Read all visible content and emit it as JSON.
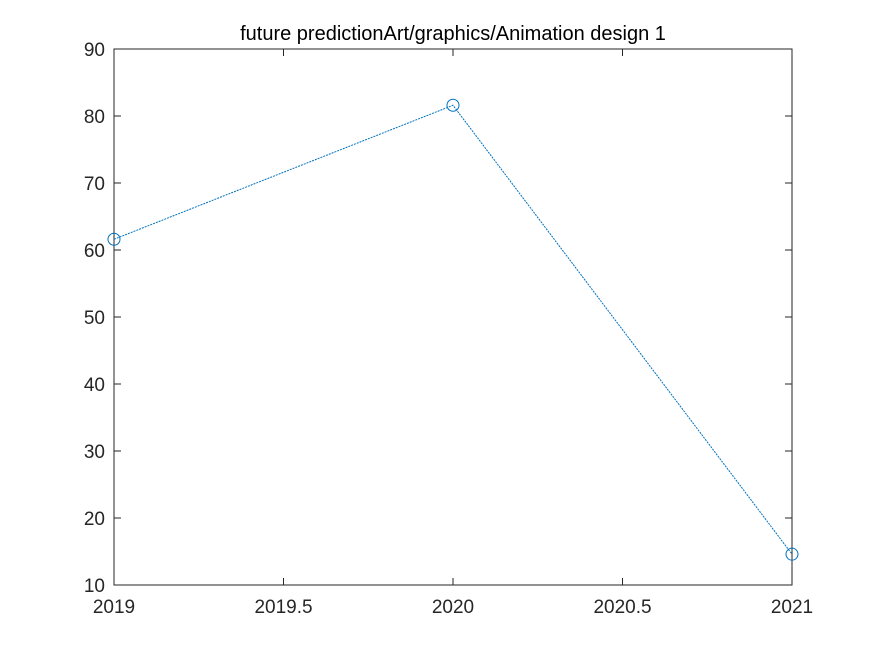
{
  "chart_data": {
    "type": "line",
    "title": "future predictionArt/graphics/Animation design 1",
    "xlabel": "",
    "ylabel": "",
    "xlim": [
      2019,
      2021
    ],
    "ylim": [
      10,
      90
    ],
    "x_ticks": [
      2019,
      2019.5,
      2020,
      2020.5,
      2021
    ],
    "x_tick_labels": [
      "2019",
      "2019.5",
      "2020",
      "2020.5",
      "2021"
    ],
    "y_ticks": [
      10,
      20,
      30,
      40,
      50,
      60,
      70,
      80,
      90
    ],
    "y_tick_labels": [
      "10",
      "20",
      "30",
      "40",
      "50",
      "60",
      "70",
      "80",
      "90"
    ],
    "grid": false,
    "legend": "none",
    "marker": "circle",
    "line_color": "#0072BD",
    "series": [
      {
        "x": [
          2019,
          2020,
          2021
        ],
        "y": [
          61.6,
          81.6,
          14.6
        ]
      }
    ]
  }
}
